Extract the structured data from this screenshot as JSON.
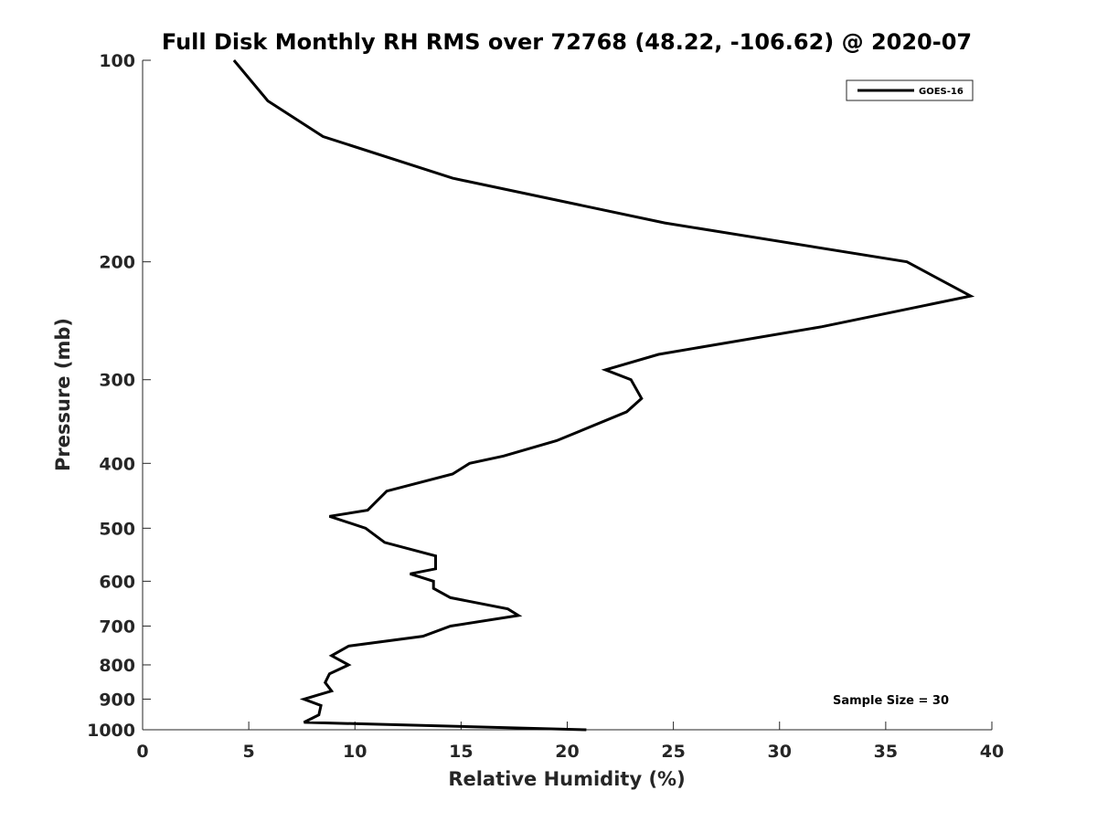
{
  "chart_data": {
    "type": "line",
    "title": "Full Disk Monthly RH RMS over 72768 (48.22, -106.62) @ 2020-07",
    "xlabel": "Relative Humidity (%)",
    "ylabel": "Pressure (mb)",
    "xlim": [
      0,
      40
    ],
    "ylim": [
      1000,
      100
    ],
    "yscale": "log",
    "yreverse": true,
    "x_ticks": [
      "0",
      "5",
      "10",
      "15",
      "20",
      "25",
      "30",
      "35",
      "40"
    ],
    "y_ticks": [
      "100",
      "200",
      "300",
      "400",
      "500",
      "600",
      "700",
      "800",
      "900",
      "1000"
    ],
    "grid": false,
    "legend_position": "top-right",
    "annotation": "Sample Size = 30",
    "colors": {
      "line": "#000000",
      "axis": "#262626",
      "background": "#ffffff"
    },
    "series": [
      {
        "name": "GOES-16",
        "x": [
          4.3,
          5.9,
          8.5,
          14.6,
          24.6,
          36,
          39,
          32,
          24.3,
          21.8,
          23,
          23.5,
          22.8,
          19.5,
          17,
          15.4,
          14.6,
          11.5,
          10.6,
          8.8,
          10.5,
          11.4,
          13.8,
          13.8,
          12.6,
          13.7,
          13.7,
          14.5,
          17.2,
          17.7,
          14.5,
          13.2,
          9.7,
          8.9,
          9.7,
          8.8,
          8.6,
          8.9,
          7.6,
          8.4,
          8.3,
          7.6,
          20.9
        ],
        "y": [
          100,
          115,
          130,
          150,
          175,
          200,
          225,
          250,
          275,
          290,
          300,
          320,
          335,
          370,
          390,
          400,
          415,
          440,
          470,
          480,
          500,
          525,
          550,
          575,
          585,
          600,
          615,
          635,
          660,
          675,
          700,
          725,
          750,
          775,
          800,
          825,
          850,
          875,
          900,
          920,
          950,
          975,
          1000
        ]
      }
    ]
  }
}
